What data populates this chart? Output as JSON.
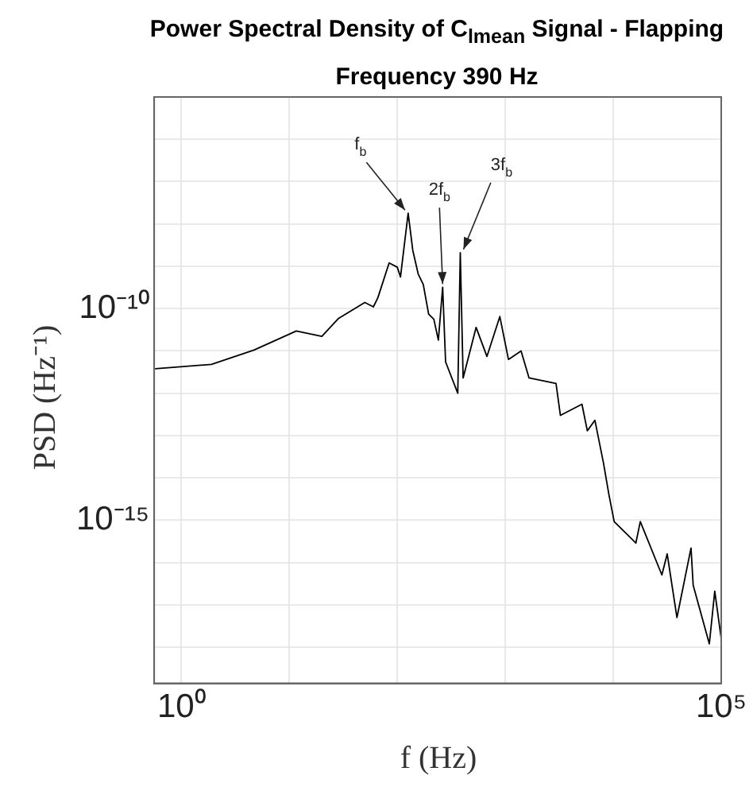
{
  "chart_data": {
    "type": "line",
    "title": "Power Spectral Density of C$_{lmean}$ Signal - Flapping Frequency 390 Hz",
    "xlabel": "f (Hz)",
    "ylabel": "PSD (Hz⁻¹)",
    "log": "xy",
    "grid": true,
    "legend": false,
    "marker": "none",
    "line_style": "solid",
    "xlim": [
      0.56,
      100000
    ],
    "ylim": [
      1.4e-19,
      1e-05
    ],
    "xticks": [
      {
        "value": 1,
        "label": "10⁰"
      },
      {
        "value": 10,
        "label": null
      },
      {
        "value": 100,
        "label": null
      },
      {
        "value": 1000,
        "label": null
      },
      {
        "value": 10000,
        "label": null
      },
      {
        "value": 100000,
        "label": "10⁵"
      }
    ],
    "yticks": [
      {
        "value": 1e-18,
        "label": null
      },
      {
        "value": 1e-17,
        "label": null
      },
      {
        "value": 1e-16,
        "label": null
      },
      {
        "value": 1e-15,
        "label": "10⁻¹⁵"
      },
      {
        "value": 1e-14,
        "label": null
      },
      {
        "value": 1e-13,
        "label": null
      },
      {
        "value": 1e-12,
        "label": null
      },
      {
        "value": 1e-11,
        "label": null
      },
      {
        "value": 1e-10,
        "label": "10⁻¹⁰"
      },
      {
        "value": 1e-09,
        "label": null
      },
      {
        "value": 1e-08,
        "label": null
      },
      {
        "value": 1e-07,
        "label": null
      },
      {
        "value": 1e-06,
        "label": null
      }
    ],
    "series": [
      {
        "color": "#000000",
        "x": [
          0.57,
          1.9,
          4.7,
          11.6,
          20,
          28.6,
          50,
          60,
          66,
          84,
          100,
          107,
          126,
          139,
          156,
          174,
          195,
          218,
          240,
          263,
          280,
          363,
          383,
          407,
          537,
          676,
          890,
          1070,
          1400,
          1660,
          2950,
          3240,
          5130,
          5750,
          6760,
          8130,
          9120,
          10200,
          16200,
          17800,
          28200,
          31600,
          38900,
          52500,
          55000,
          77600,
          87100,
          100000
        ],
        "values": [
          3.8e-12,
          4.8e-12,
          1.05e-11,
          2.95e-11,
          2.2e-11,
          5.9e-11,
          1.4e-10,
          1.1e-10,
          1.8e-10,
          1.2e-09,
          9.5e-10,
          5.6e-10,
          1.8e-08,
          2.4e-09,
          6.6e-10,
          3.7e-10,
          7.4e-11,
          5.6e-11,
          1.8e-11,
          3.2e-10,
          5.5e-12,
          1e-12,
          2.1e-09,
          2.3e-12,
          3.6e-11,
          7.4e-12,
          6.5e-11,
          6.3e-12,
          1e-11,
          2.3e-12,
          1.7e-12,
          3e-13,
          5.5e-13,
          1.3e-13,
          2.3e-13,
          2.2e-14,
          4e-15,
          9.3e-16,
          2.9e-16,
          9.3e-16,
          5.1e-17,
          1.6e-16,
          5e-18,
          2.2e-16,
          2.9e-17,
          1.2e-18,
          2.1e-17,
          1.6e-18
        ]
      }
    ],
    "annotations": [
      {
        "text": "f$_{b}$",
        "x": 126,
        "y": 1.8e-08
      },
      {
        "text": "2f$_{b}$",
        "x": 263,
        "y": 3.2e-10
      },
      {
        "text": "3f$_{b}$",
        "x": 383,
        "y": 2.1e-09
      }
    ]
  }
}
